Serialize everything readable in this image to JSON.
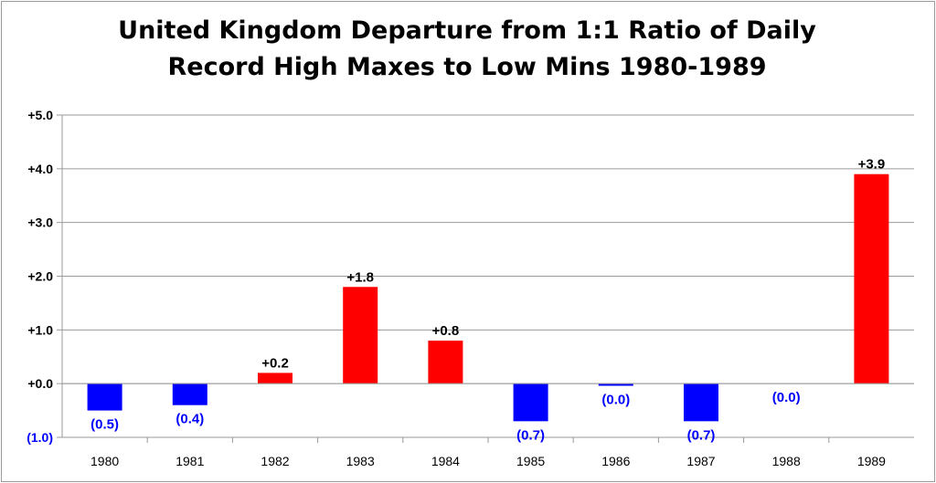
{
  "chart_data": {
    "type": "bar",
    "title_lines": [
      "United Kingdom Departure from 1:1 Ratio of Daily",
      "Record High Maxes to Low Mins 1980-1989"
    ],
    "categories": [
      "1980",
      "1981",
      "1982",
      "1983",
      "1984",
      "1985",
      "1986",
      "1987",
      "1988",
      "1989"
    ],
    "values": [
      -0.5,
      -0.4,
      0.2,
      1.8,
      0.8,
      -0.7,
      -0.04,
      -0.7,
      0.0,
      3.9
    ],
    "data_labels": [
      "(0.5)",
      "(0.4)",
      "+0.2",
      "+1.8",
      "+0.8",
      "(0.7)",
      "(0.0)",
      "(0.7)",
      "(0.0)",
      "+3.9"
    ],
    "ylim": [
      -1.0,
      5.0
    ],
    "yticks": [
      {
        "value": 5,
        "label": "+5.0"
      },
      {
        "value": 4,
        "label": "+4.0"
      },
      {
        "value": 3,
        "label": "+3.0"
      },
      {
        "value": 2,
        "label": "+2.0"
      },
      {
        "value": 1,
        "label": "+1.0"
      },
      {
        "value": 0,
        "label": "+0.0"
      },
      {
        "value": -1,
        "label": "(1.0)"
      }
    ],
    "grid": true,
    "colors": {
      "positive": "#ff0000",
      "negative": "#0000ff",
      "positive_label": "#000000",
      "negative_label": "#0000ff",
      "grid": "#9a9a9a"
    }
  }
}
